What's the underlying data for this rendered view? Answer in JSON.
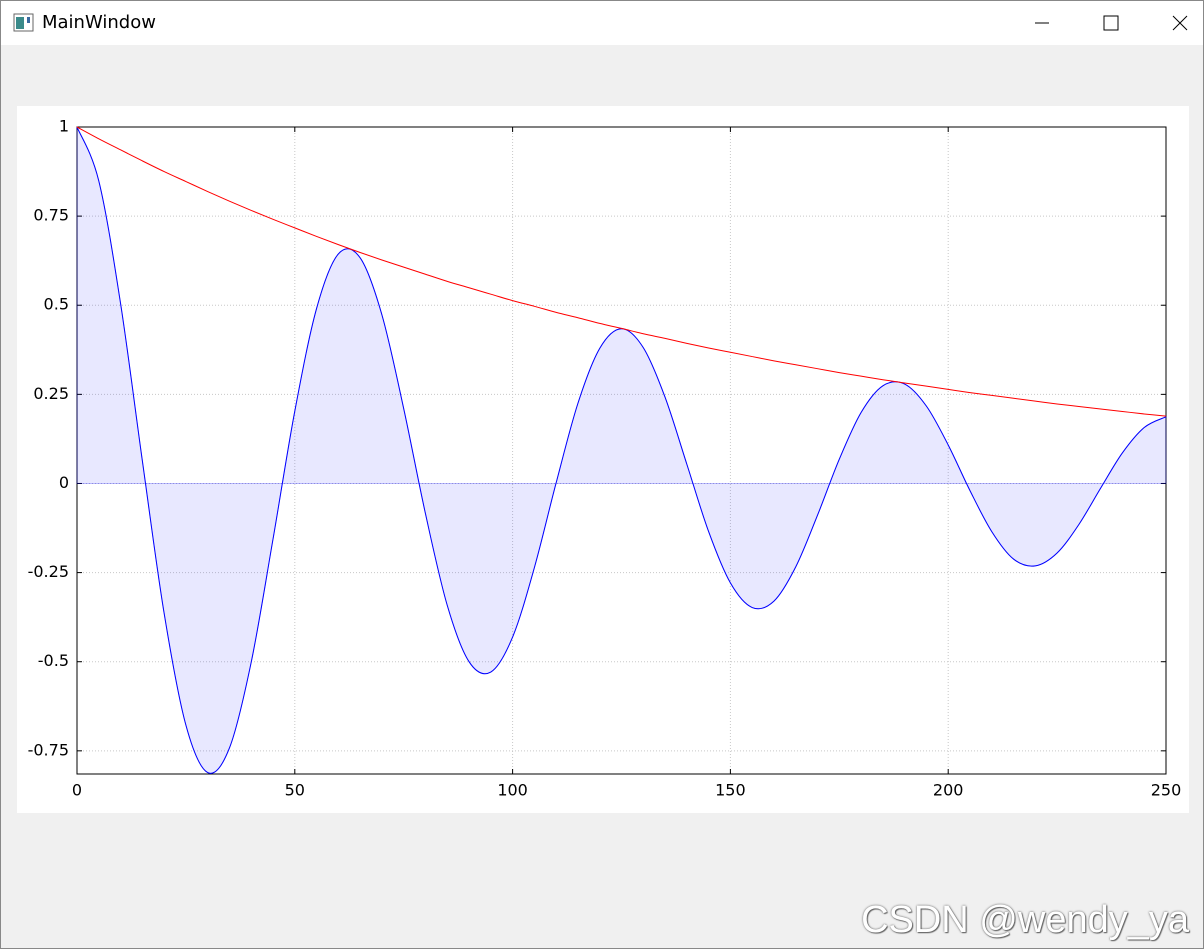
{
  "window": {
    "title": "MainWindow"
  },
  "watermark": "CSDN @wendy_ya",
  "chart_data": {
    "type": "line",
    "x": [
      0,
      5,
      10,
      15,
      20,
      25,
      30,
      35,
      40,
      45,
      50,
      55,
      60,
      65,
      70,
      75,
      80,
      85,
      90,
      95,
      100,
      105,
      110,
      115,
      120,
      125,
      130,
      135,
      140,
      145,
      150,
      155,
      160,
      165,
      170,
      175,
      180,
      185,
      190,
      195,
      200,
      205,
      210,
      215,
      220,
      225,
      230,
      235,
      240,
      245,
      250
    ],
    "series": [
      {
        "color": "#0000ff",
        "fill": "rgba(0,0,255,0.09)",
        "values": [
          1.0,
          0.849,
          0.505,
          0.064,
          -0.364,
          -0.678,
          -0.811,
          -0.742,
          -0.501,
          -0.156,
          0.203,
          0.491,
          0.644,
          0.633,
          0.473,
          0.21,
          -0.085,
          -0.342,
          -0.5,
          -0.529,
          -0.431,
          -0.236,
          0.002,
          0.225,
          0.379,
          0.434,
          0.381,
          0.242,
          0.054,
          -0.135,
          -0.279,
          -0.348,
          -0.33,
          -0.234,
          -0.089,
          0.068,
          0.199,
          0.274,
          0.279,
          0.217,
          0.108,
          -0.02,
          -0.135,
          -0.212,
          -0.231,
          -0.195,
          -0.115,
          -0.013,
          0.086,
          0.157,
          0.187
        ]
      },
      {
        "color": "#ff0000",
        "values": [
          1.0,
          0.967,
          0.936,
          0.905,
          0.875,
          0.847,
          0.819,
          0.792,
          0.766,
          0.741,
          0.717,
          0.693,
          0.67,
          0.648,
          0.627,
          0.607,
          0.587,
          0.567,
          0.549,
          0.531,
          0.513,
          0.497,
          0.48,
          0.465,
          0.449,
          0.435,
          0.42,
          0.407,
          0.393,
          0.38,
          0.368,
          0.356,
          0.344,
          0.333,
          0.322,
          0.311,
          0.301,
          0.291,
          0.282,
          0.273,
          0.264,
          0.255,
          0.247,
          0.239,
          0.231,
          0.223,
          0.216,
          0.209,
          0.202,
          0.195,
          0.189
        ]
      }
    ],
    "xlim": [
      0,
      250
    ],
    "ylim": [
      -0.815,
      1
    ],
    "xticks": [
      0,
      50,
      100,
      150,
      200,
      250
    ],
    "yticks": [
      1,
      0.75,
      0.5,
      0.25,
      0,
      -0.25,
      -0.5,
      -0.75
    ],
    "grid": true
  }
}
